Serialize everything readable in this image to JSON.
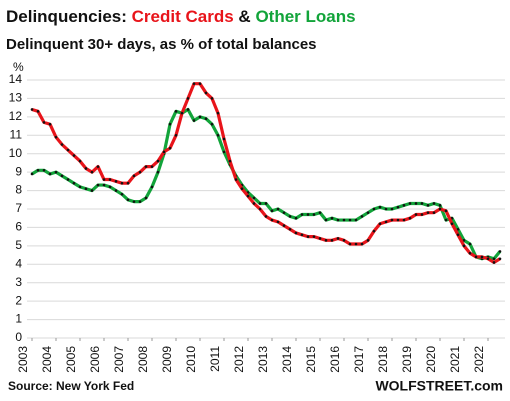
{
  "chart_data": {
    "type": "line",
    "title": "Delinquencies:",
    "title_joiner": "&",
    "subtitle": "Delinquent 30+ days, as % of total balances",
    "y_label": "%",
    "source": "Source: New York Fed",
    "watermark": "WOLFSTREET.com",
    "x": [
      2003,
      2003.25,
      2003.5,
      2003.75,
      2004,
      2004.25,
      2004.5,
      2004.75,
      2005,
      2005.25,
      2005.5,
      2005.75,
      2006,
      2006.25,
      2006.5,
      2006.75,
      2007,
      2007.25,
      2007.5,
      2007.75,
      2008,
      2008.25,
      2008.5,
      2008.75,
      2009,
      2009.25,
      2009.5,
      2009.75,
      2010,
      2010.25,
      2010.5,
      2010.75,
      2011,
      2011.25,
      2011.5,
      2011.75,
      2012,
      2012.25,
      2012.5,
      2012.75,
      2013,
      2013.25,
      2013.5,
      2013.75,
      2014,
      2014.25,
      2014.5,
      2014.75,
      2015,
      2015.25,
      2015.5,
      2015.75,
      2016,
      2016.25,
      2016.5,
      2016.75,
      2017,
      2017.25,
      2017.5,
      2017.75,
      2018,
      2018.25,
      2018.5,
      2018.75,
      2019,
      2019.25,
      2019.5,
      2019.75,
      2020,
      2020.25,
      2020.5,
      2020.75,
      2021,
      2021.25,
      2021.5,
      2021.75,
      2022,
      2022.25,
      2022.5
    ],
    "series": [
      {
        "name": "Credit Cards",
        "color": "#e8141a",
        "values": [
          12.4,
          12.3,
          11.7,
          11.6,
          10.9,
          10.5,
          10.2,
          9.9,
          9.6,
          9.2,
          9.0,
          9.3,
          8.6,
          8.6,
          8.5,
          8.4,
          8.4,
          8.8,
          9.0,
          9.3,
          9.3,
          9.6,
          10.1,
          10.3,
          11.0,
          12.2,
          13.0,
          13.8,
          13.8,
          13.3,
          13.0,
          12.2,
          10.8,
          9.6,
          8.6,
          8.1,
          7.7,
          7.3,
          7.0,
          6.6,
          6.4,
          6.3,
          6.1,
          5.9,
          5.7,
          5.6,
          5.5,
          5.5,
          5.4,
          5.3,
          5.3,
          5.4,
          5.3,
          5.1,
          5.1,
          5.1,
          5.3,
          5.8,
          6.2,
          6.3,
          6.4,
          6.4,
          6.4,
          6.5,
          6.7,
          6.7,
          6.8,
          6.8,
          7.0,
          6.9,
          6.2,
          5.6,
          5.0,
          4.6,
          4.4,
          4.4,
          4.3,
          4.1,
          4.3
        ]
      },
      {
        "name": "Other Loans",
        "color": "#12a43a",
        "values": [
          8.9,
          9.1,
          9.1,
          8.9,
          9.0,
          8.8,
          8.6,
          8.4,
          8.2,
          8.1,
          8.0,
          8.3,
          8.3,
          8.2,
          8.0,
          7.8,
          7.5,
          7.4,
          7.4,
          7.6,
          8.2,
          9.0,
          10.0,
          11.6,
          12.3,
          12.2,
          12.4,
          11.8,
          12.0,
          11.9,
          11.6,
          11.0,
          10.1,
          9.4,
          8.8,
          8.3,
          7.9,
          7.6,
          7.3,
          7.3,
          6.9,
          7.0,
          6.8,
          6.6,
          6.5,
          6.7,
          6.7,
          6.7,
          6.8,
          6.4,
          6.5,
          6.4,
          6.4,
          6.4,
          6.4,
          6.6,
          6.8,
          7.0,
          7.1,
          7.0,
          7.0,
          7.1,
          7.2,
          7.3,
          7.3,
          7.3,
          7.2,
          7.3,
          7.2,
          6.4,
          6.5,
          5.9,
          5.3,
          5.1,
          4.4,
          4.3,
          4.4,
          4.3,
          4.7
        ]
      }
    ],
    "xlim": [
      2003,
      2022.5
    ],
    "xticks": [
      2003,
      2004,
      2005,
      2006,
      2007,
      2008,
      2009,
      2010,
      2011,
      2012,
      2013,
      2014,
      2015,
      2016,
      2017,
      2018,
      2019,
      2020,
      2021,
      2022
    ],
    "ylim": [
      0,
      14
    ],
    "yticks": [
      0,
      1,
      2,
      3,
      4,
      5,
      6,
      7,
      8,
      9,
      10,
      11,
      12,
      13,
      14
    ],
    "grid": true,
    "marker_color": "#111111"
  }
}
